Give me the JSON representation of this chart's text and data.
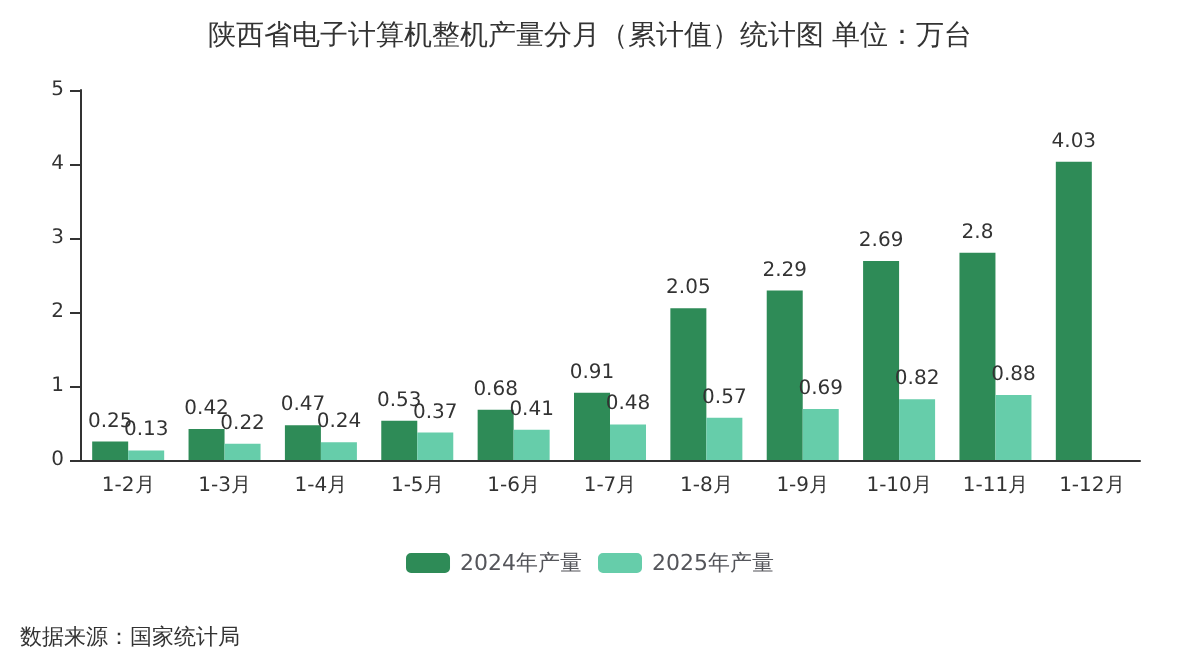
{
  "chart_data": {
    "type": "bar",
    "title": "陕西省电子计算机整机产量分月（累计值）统计图 单位：万台",
    "categories": [
      "1-2月",
      "1-3月",
      "1-4月",
      "1-5月",
      "1-6月",
      "1-7月",
      "1-8月",
      "1-9月",
      "1-10月",
      "1-11月",
      "1-12月"
    ],
    "series": [
      {
        "name": "2024年产量",
        "color": "#2e8b57",
        "values": [
          0.25,
          0.42,
          0.47,
          0.53,
          0.68,
          0.91,
          2.05,
          2.29,
          2.69,
          2.8,
          4.03
        ]
      },
      {
        "name": "2025年产量",
        "color": "#66cdaa",
        "values": [
          0.13,
          0.22,
          0.24,
          0.37,
          0.41,
          0.48,
          0.57,
          0.69,
          0.82,
          0.88,
          null
        ]
      }
    ],
    "ylim": [
      0,
      5
    ],
    "yticks": [
      0,
      1,
      2,
      3,
      4,
      5
    ],
    "grid": false,
    "legend": "bottom",
    "data_labels": true,
    "annotations": [
      "数据来源：国家统计局"
    ]
  }
}
